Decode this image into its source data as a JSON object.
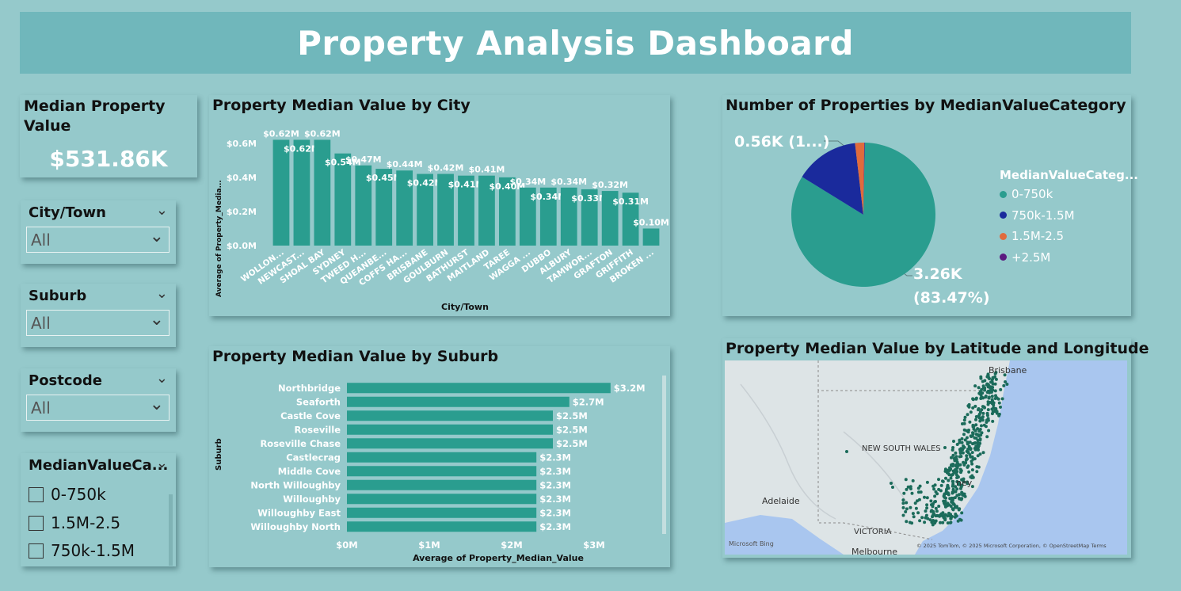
{
  "title": "Property Analysis Dashboard",
  "kpi": {
    "title": "Median Property Value",
    "value": "$531.86K"
  },
  "slicers": {
    "city": {
      "title": "City/Town",
      "value": "All"
    },
    "suburb": {
      "title": "Suburb",
      "value": "All"
    },
    "postcode": {
      "title": "Postcode",
      "value": "All"
    },
    "category": {
      "title": "MedianValueCa...",
      "options": [
        "0-750k",
        "1.5M-2.5",
        "750k-1.5M"
      ]
    }
  },
  "city_chart": {
    "title": "Property Median Value by City",
    "xlabel": "City/Town",
    "ylabel": "Average of Property_Media...",
    "bar_color": "#2a9d8f"
  },
  "suburb_chart": {
    "title": "Property Median Value by Suburb",
    "xlabel": "Average of Property_Median_Value",
    "ylabel": "Suburb",
    "bar_color": "#2a9d8f"
  },
  "pie_chart": {
    "title": "Number of Properties by MedianValueCategory",
    "legend_title": "MedianValueCateg...",
    "label_small": "0.56K (1...)",
    "label_large_1": "3.26K",
    "label_large_2": "(83.47%)"
  },
  "map_panel": {
    "title": "Property Median Value by Latitude and Longitude",
    "labels": {
      "brisbane": "Brisbane",
      "nsw": "NEW SOUTH WALES",
      "adelaide": "Adelaide",
      "victoria": "VICTORIA",
      "sydney": "ney",
      "melbourne": "Melbourne"
    },
    "bing": "Microsoft Bing",
    "attribution": "© 2025 TomTom, © 2025 Microsoft Corporation, © OpenStreetMap  Terms",
    "dot_color": "#1b6b5a"
  },
  "chart_data": [
    {
      "type": "bar",
      "title": "Property Median Value by City",
      "xlabel": "City/Town",
      "ylabel": "Average of Property_Media...",
      "categories": [
        "WOLLON...",
        "NEWCAST...",
        "SHOAL BAY",
        "SYDNEY",
        "TWEED H...",
        "QUEANBE...",
        "COFFS HA...",
        "BRISBANE",
        "GOULBURN",
        "BATHURST",
        "MAITLAND",
        "TAREE",
        "WAGGA ...",
        "DUBBO",
        "ALBURY",
        "TAMWOR...",
        "GRAFTON",
        "GRIFFITH",
        "BROKEN ..."
      ],
      "values": [
        0.62,
        0.62,
        0.62,
        0.54,
        0.47,
        0.45,
        0.44,
        0.42,
        0.42,
        0.41,
        0.41,
        0.4,
        0.34,
        0.34,
        0.34,
        0.33,
        0.32,
        0.31,
        0.1
      ],
      "data_labels": [
        "$0.62M",
        "$0.62M",
        "$0.62M",
        "$0.54M",
        "$0.47M",
        "$0.45M",
        "$0.44M",
        "$0.42M",
        "$0.42M",
        "$0.41M",
        "$0.41M",
        "$0.40M",
        "$0.34M",
        "$0.34M",
        "$0.34M",
        "$0.33M",
        "$0.32M",
        "$0.31M",
        "$0.10M"
      ],
      "yticks": [
        "$0.0M",
        "$0.2M",
        "$0.4M",
        "$0.6M"
      ],
      "ylim": [
        0,
        0.65
      ],
      "grid": false
    },
    {
      "type": "bar",
      "orientation": "horizontal",
      "title": "Property Median Value by Suburb",
      "xlabel": "Average of Property_Median_Value",
      "ylabel": "Suburb",
      "categories": [
        "Northbridge",
        "Seaforth",
        "Castle Cove",
        "Roseville",
        "Roseville Chase",
        "Castlecrag",
        "Middle Cove",
        "North Willoughby",
        "Willoughby",
        "Willoughby East",
        "Willoughby North"
      ],
      "values": [
        3.2,
        2.7,
        2.5,
        2.5,
        2.5,
        2.3,
        2.3,
        2.3,
        2.3,
        2.3,
        2.3
      ],
      "data_labels": [
        "$3.2M",
        "$2.7M",
        "$2.5M",
        "$2.5M",
        "$2.5M",
        "$2.3M",
        "$2.3M",
        "$2.3M",
        "$2.3M",
        "$2.3M",
        "$2.3M"
      ],
      "xticks": [
        "$0M",
        "$1M",
        "$2M",
        "$3M"
      ],
      "xlim": [
        0,
        3.2
      ]
    },
    {
      "type": "pie",
      "title": "Number of Properties by MedianValueCategory",
      "legend_title": "MedianValueCateg...",
      "legend_placement": "right",
      "slices": [
        {
          "name": "0-750k",
          "value": 3.26,
          "color": "#2a9d8f"
        },
        {
          "name": "750k-1.5M",
          "value": 0.56,
          "color": "#1a2a9c"
        },
        {
          "name": "1.5M-2.5",
          "value": 0.08,
          "color": "#e06b3c"
        },
        {
          "name": "+2.5M",
          "value": 0.005,
          "color": "#5b1a80"
        }
      ]
    }
  ]
}
